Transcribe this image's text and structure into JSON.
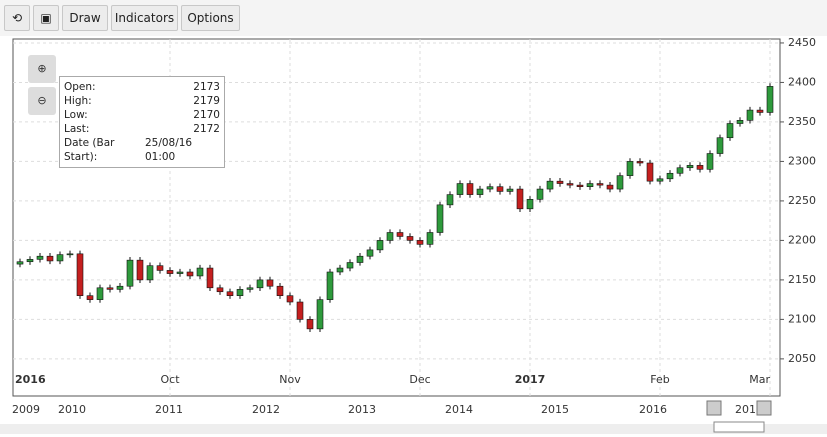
{
  "toolbar": {
    "buttons": [
      "Draw",
      "Indicators",
      "Options"
    ]
  },
  "tooltip": {
    "rows": [
      [
        "Open:",
        "2173"
      ],
      [
        "High:",
        "2179"
      ],
      [
        "Low:",
        "2170"
      ],
      [
        "Last:",
        "2172"
      ],
      [
        "Date (Bar Start):",
        "25/08/16 01:00"
      ]
    ]
  },
  "navigator": {
    "labels": [
      "2009",
      "2010",
      "2011",
      "2012",
      "2013",
      "2014",
      "2015",
      "2016",
      "201"
    ]
  },
  "chart_data": {
    "type": "candlestick",
    "categories": [
      "2016",
      null,
      null,
      null,
      null,
      null,
      null,
      null,
      null,
      null,
      null,
      null,
      null,
      null,
      null,
      "Oct",
      null,
      null,
      null,
      null,
      null,
      null,
      null,
      null,
      null,
      null,
      null,
      "Nov",
      null,
      null,
      null,
      null,
      null,
      null,
      null,
      null,
      null,
      null,
      null,
      null,
      "Dec",
      null,
      null,
      null,
      null,
      null,
      null,
      null,
      null,
      null,
      null,
      "2017",
      null,
      null,
      null,
      null,
      null,
      null,
      null,
      null,
      null,
      null,
      null,
      null,
      "Feb",
      null,
      null,
      null,
      null,
      null,
      null,
      null,
      null,
      null,
      null,
      "Mar"
    ],
    "open": [
      2170,
      2173,
      2176,
      2180,
      2174,
      2182,
      2183,
      2130,
      2125,
      2140,
      2138,
      2142,
      2175,
      2150,
      2168,
      2162,
      2158,
      2160,
      2155,
      2165,
      2140,
      2135,
      2130,
      2138,
      2140,
      2150,
      2142,
      2130,
      2122,
      2100,
      2088,
      2125,
      2160,
      2165,
      2172,
      2180,
      2188,
      2200,
      2210,
      2205,
      2200,
      2195,
      2210,
      2245,
      2258,
      2272,
      2258,
      2265,
      2268,
      2262,
      2265,
      2240,
      2252,
      2265,
      2275,
      2272,
      2270,
      2268,
      2272,
      2270,
      2265,
      2282,
      2300,
      2298,
      2275,
      2278,
      2285,
      2292,
      2295,
      2290,
      2310,
      2330,
      2348,
      2352,
      2365,
      2362
    ],
    "high": [
      2177,
      2180,
      2184,
      2184,
      2186,
      2187,
      2187,
      2134,
      2144,
      2144,
      2146,
      2179,
      2179,
      2172,
      2172,
      2166,
      2164,
      2164,
      2169,
      2169,
      2144,
      2139,
      2142,
      2144,
      2154,
      2154,
      2146,
      2134,
      2126,
      2104,
      2129,
      2164,
      2169,
      2176,
      2184,
      2192,
      2204,
      2214,
      2214,
      2209,
      2204,
      2214,
      2249,
      2262,
      2276,
      2276,
      2269,
      2272,
      2272,
      2269,
      2269,
      2256,
      2269,
      2279,
      2279,
      2276,
      2274,
      2276,
      2276,
      2274,
      2286,
      2304,
      2304,
      2302,
      2282,
      2289,
      2296,
      2299,
      2299,
      2314,
      2334,
      2352,
      2356,
      2369,
      2369,
      2399
    ],
    "low": [
      2166,
      2169,
      2172,
      2170,
      2170,
      2178,
      2126,
      2121,
      2121,
      2134,
      2134,
      2138,
      2146,
      2146,
      2158,
      2154,
      2154,
      2151,
      2151,
      2136,
      2131,
      2126,
      2126,
      2134,
      2136,
      2138,
      2126,
      2118,
      2096,
      2084,
      2084,
      2121,
      2156,
      2161,
      2168,
      2176,
      2184,
      2196,
      2201,
      2196,
      2191,
      2191,
      2206,
      2241,
      2254,
      2254,
      2254,
      2261,
      2258,
      2258,
      2236,
      2236,
      2248,
      2261,
      2268,
      2266,
      2264,
      2264,
      2266,
      2261,
      2261,
      2278,
      2294,
      2271,
      2271,
      2274,
      2281,
      2288,
      2286,
      2286,
      2306,
      2326,
      2344,
      2348,
      2358,
      2358
    ],
    "close": [
      2173,
      2176,
      2180,
      2174,
      2182,
      2183,
      2130,
      2125,
      2140,
      2138,
      2142,
      2175,
      2150,
      2168,
      2162,
      2158,
      2160,
      2155,
      2165,
      2140,
      2135,
      2130,
      2138,
      2140,
      2150,
      2142,
      2130,
      2122,
      2100,
      2088,
      2125,
      2160,
      2165,
      2172,
      2180,
      2188,
      2200,
      2210,
      2205,
      2200,
      2195,
      2210,
      2245,
      2258,
      2272,
      2258,
      2265,
      2268,
      2262,
      2265,
      2240,
      2252,
      2265,
      2275,
      2272,
      2270,
      2268,
      2272,
      2270,
      2265,
      2282,
      2300,
      2298,
      2275,
      2278,
      2285,
      2292,
      2295,
      2290,
      2310,
      2330,
      2348,
      2352,
      2365,
      2362,
      2395
    ],
    "up_color": "#2e9a3c",
    "down_color": "#c41f1f",
    "ylim": [
      2003,
      2455
    ],
    "yticks": [
      2050,
      2100,
      2150,
      2200,
      2250,
      2300,
      2350,
      2400,
      2450
    ],
    "grid": true
  }
}
